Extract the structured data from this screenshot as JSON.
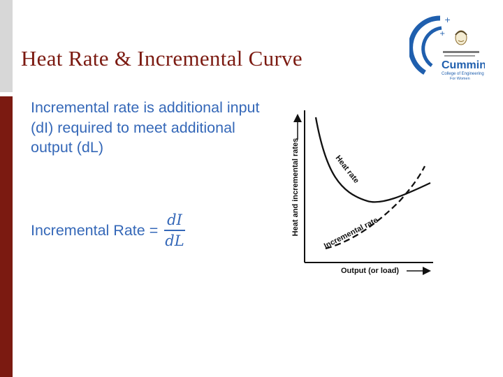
{
  "slide": {
    "title": "Heat Rate & Incremental Curve"
  },
  "logo": {
    "line1": "Cummins",
    "line2": "College of Engineering",
    "line3": "For Women",
    "accent_color": "#1f5fae"
  },
  "content": {
    "definition": "Incremental rate is additional input (dI) required to meet additional output (dL)",
    "formula_label": "Incremental Rate",
    "formula_equals": "=",
    "formula_numerator": "dI",
    "formula_denominator": "dL"
  },
  "diagram": {
    "y_axis_label": "Heat and incremental rates",
    "x_axis_label": "Output (or load)",
    "heat_rate_label": "Heat rate",
    "incremental_rate_label": "Incremental rate"
  },
  "colors": {
    "title": "#7b1a11",
    "body_text": "#3568b8",
    "band_top": "#d7d7d7",
    "band_bottom": "#7b1a11"
  }
}
